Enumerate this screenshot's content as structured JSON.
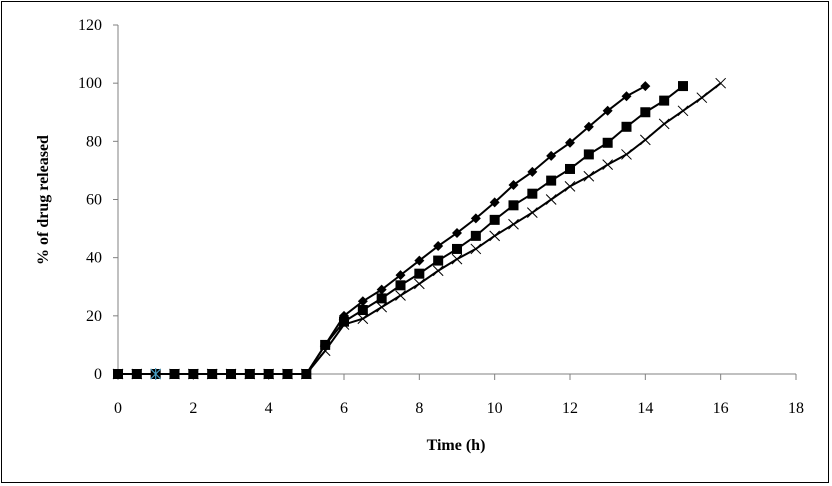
{
  "chart_data": {
    "type": "line",
    "title": "",
    "xlabel": "Time (h)",
    "ylabel": "% of  drug released",
    "xlim": [
      0,
      18
    ],
    "ylim": [
      0,
      120
    ],
    "xticks": [
      0,
      2,
      4,
      6,
      8,
      10,
      12,
      14,
      16,
      18
    ],
    "yticks": [
      0,
      20,
      40,
      60,
      80,
      100,
      120
    ],
    "grid": false,
    "legend": "none",
    "series": [
      {
        "marker": "diamond",
        "color": "#000000",
        "x": [
          0,
          0.5,
          1,
          1.5,
          2,
          2.5,
          3,
          3.5,
          4,
          4.5,
          5,
          5.5,
          6,
          6.5,
          7,
          7.5,
          8,
          8.5,
          9,
          9.5,
          10,
          10.5,
          11,
          11.5,
          12,
          12.5,
          13,
          13.5,
          14
        ],
        "y": [
          0,
          0,
          0,
          0,
          0,
          0,
          0,
          0,
          0,
          0,
          0,
          10,
          20,
          25,
          29,
          34,
          39,
          44,
          48.5,
          53.5,
          59,
          65,
          69.5,
          75,
          79.5,
          85,
          90.5,
          95.5,
          99
        ]
      },
      {
        "marker": "square",
        "color": "#000000",
        "x": [
          0,
          0.5,
          1,
          1.5,
          2,
          2.5,
          3,
          3.5,
          4,
          4.5,
          5,
          5.5,
          6,
          6.5,
          7,
          7.5,
          8,
          8.5,
          9,
          9.5,
          10,
          10.5,
          11,
          11.5,
          12,
          12.5,
          13,
          13.5,
          14,
          14.5,
          15
        ],
        "y": [
          0,
          0,
          0,
          0,
          0,
          0,
          0,
          0,
          0,
          0,
          0,
          10,
          18,
          22,
          26,
          30.5,
          34.5,
          39,
          43,
          47.5,
          53,
          58,
          62,
          66.5,
          70.5,
          75.5,
          79.5,
          85,
          90,
          94,
          99
        ]
      },
      {
        "marker": "x",
        "color": "#000000",
        "x": [
          0,
          0.5,
          1,
          1.5,
          2,
          2.5,
          3,
          3.5,
          4,
          4.5,
          5,
          5.5,
          6,
          6.5,
          7,
          7.5,
          8,
          8.5,
          9,
          9.5,
          10,
          10.5,
          11,
          11.5,
          12,
          12.5,
          13,
          13.5,
          14,
          14.5,
          15,
          15.5,
          16
        ],
        "y": [
          0,
          0,
          0,
          0,
          0,
          0,
          0,
          0,
          0,
          0,
          0,
          8,
          17,
          19,
          23,
          27,
          31,
          35.5,
          39.5,
          43,
          47.5,
          51.5,
          55.5,
          60,
          64.5,
          68,
          72,
          75.5,
          80.5,
          86,
          90.5,
          95,
          100
        ]
      },
      {
        "marker": "star",
        "color": "#4aa3c8",
        "x": [
          1
        ],
        "y": [
          0
        ]
      }
    ]
  }
}
